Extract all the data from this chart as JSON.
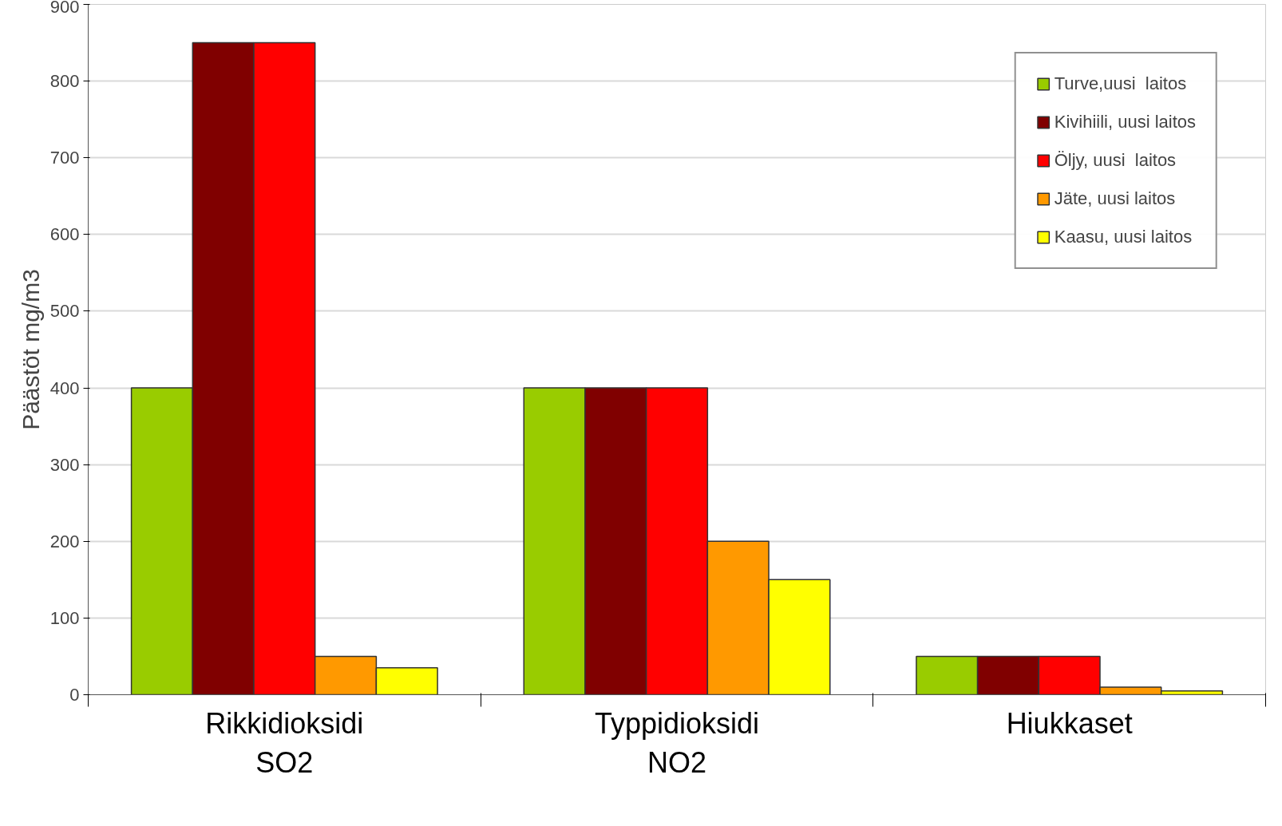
{
  "chart_data": {
    "type": "bar",
    "ylabel": "Päästöt mg/m3",
    "categories": [
      "Rikkidioksidi\nSO2",
      "Typpidioksidi\nNO2",
      "Hiukkaset"
    ],
    "series": [
      {
        "name": "Turve,uusi  laitos",
        "color": "#99cc00",
        "values": [
          400,
          400,
          50
        ]
      },
      {
        "name": "Kivihiili, uusi laitos",
        "color": "#800000",
        "values": [
          850,
          400,
          50
        ]
      },
      {
        "name": "Öljy, uusi  laitos",
        "color": "#ff0000",
        "values": [
          850,
          400,
          50
        ]
      },
      {
        "name": "Jäte, uusi laitos",
        "color": "#ff9900",
        "values": [
          50,
          200,
          10
        ]
      },
      {
        "name": "Kaasu, uusi laitos",
        "color": "#ffff00",
        "values": [
          35,
          150,
          5
        ]
      }
    ],
    "ylim": [
      0,
      900
    ],
    "yticks": [
      0,
      100,
      200,
      300,
      400,
      500,
      600,
      700,
      800,
      900
    ],
    "grid": "y",
    "legend": "top right"
  }
}
